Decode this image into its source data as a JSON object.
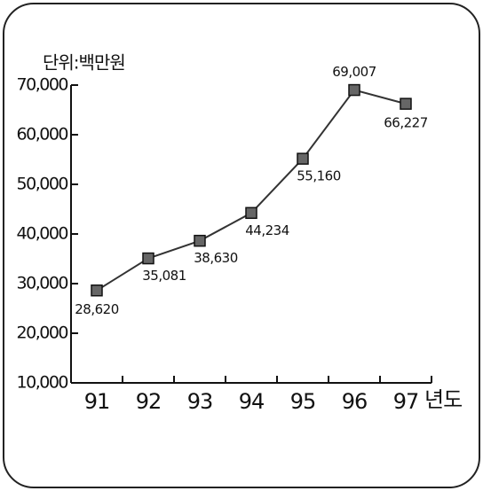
{
  "chart_data": {
    "type": "line",
    "y_label": "단위:백만원",
    "x_label": "년도",
    "categories": [
      "91",
      "92",
      "93",
      "94",
      "95",
      "96",
      "97"
    ],
    "values": [
      28620,
      35081,
      38630,
      44234,
      55160,
      69007,
      66227
    ],
    "value_labels": [
      "28,620",
      "35,081",
      "38,630",
      "44,234",
      "55,160",
      "69,007",
      "66,227"
    ],
    "color": "#333333",
    "ylim": [
      10000,
      70000
    ],
    "yticks": [
      {
        "value": 10000,
        "label": "10,000"
      },
      {
        "value": 20000,
        "label": "20,000"
      },
      {
        "value": 30000,
        "label": "30,000"
      },
      {
        "value": 40000,
        "label": "40,000"
      },
      {
        "value": 50000,
        "label": "50,000"
      },
      {
        "value": 60000,
        "label": "60,000"
      },
      {
        "value": 70000,
        "label": "70,000"
      }
    ]
  }
}
